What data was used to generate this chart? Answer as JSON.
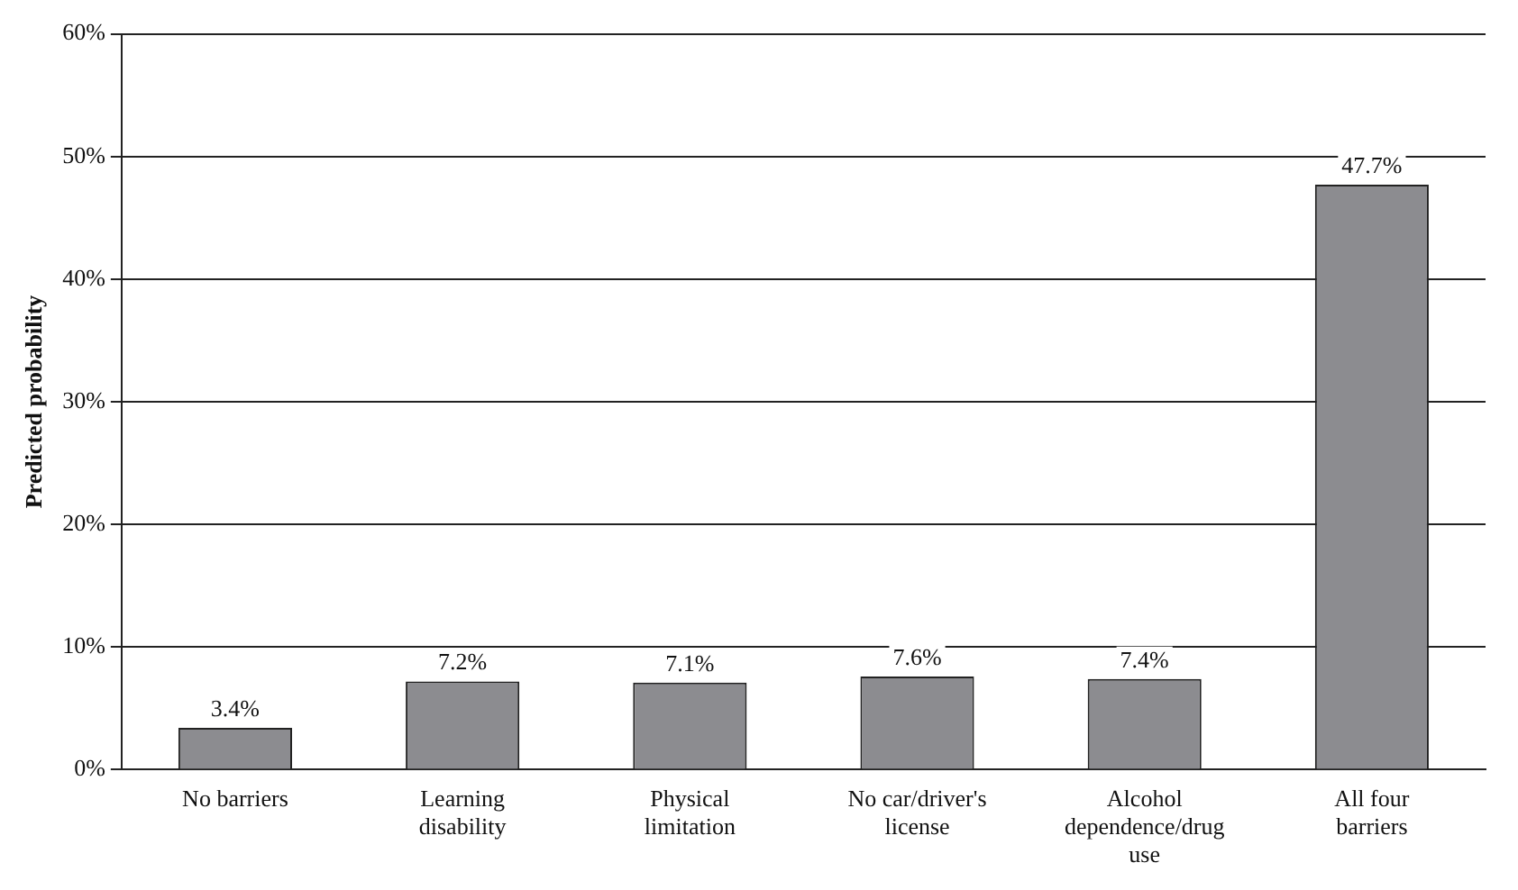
{
  "chart_data": {
    "type": "bar",
    "ylabel": "Predicted probability",
    "categories": [
      "No barriers",
      "Learning disability",
      "Physical limitation",
      "No car/driver's license",
      "Alcohol dependence/drug use",
      "All four barriers"
    ],
    "values": [
      3.4,
      7.2,
      7.1,
      7.6,
      7.4,
      47.7
    ],
    "value_labels": [
      "3.4%",
      "7.2%",
      "7.1%",
      "7.6%",
      "7.4%",
      "47.7%"
    ],
    "color": "#8c8c90",
    "ylim": [
      0,
      60
    ],
    "yticks": [
      {
        "value": 0,
        "label": "0%"
      },
      {
        "value": 10,
        "label": "10%"
      },
      {
        "value": 20,
        "label": "20%"
      },
      {
        "value": 30,
        "label": "30%"
      },
      {
        "value": 40,
        "label": "40%"
      },
      {
        "value": 50,
        "label": "50%"
      },
      {
        "value": 60,
        "label": "60%"
      }
    ],
    "grid": "y",
    "legend": false
  }
}
